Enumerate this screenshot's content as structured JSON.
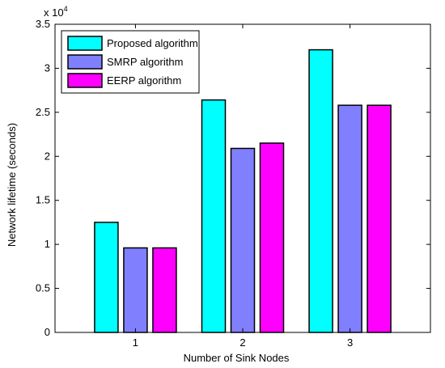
{
  "chart_data": {
    "type": "bar",
    "title": "",
    "xlabel": "Number of Sink Nodes",
    "ylabel": "Network lifetime (seconds)",
    "y_multiplier_label": "x 10",
    "y_multiplier_exponent": "4",
    "categories": [
      "1",
      "2",
      "3"
    ],
    "ylim": [
      0,
      3.5
    ],
    "yticks": [
      "0",
      "0.5",
      "1",
      "1.5",
      "2",
      "2.5",
      "3",
      "3.5"
    ],
    "series": [
      {
        "name": "Proposed algorithm",
        "color": "#00ffff",
        "values": [
          1.25,
          2.64,
          3.21
        ]
      },
      {
        "name": "SMRP algorithm",
        "color": "#8080ff",
        "values": [
          0.96,
          2.09,
          2.58
        ]
      },
      {
        "name": "EERP algorithm",
        "color": "#ff00ff",
        "values": [
          0.96,
          2.15,
          2.58
        ]
      }
    ],
    "legend_position": "top-left",
    "grid": false
  }
}
